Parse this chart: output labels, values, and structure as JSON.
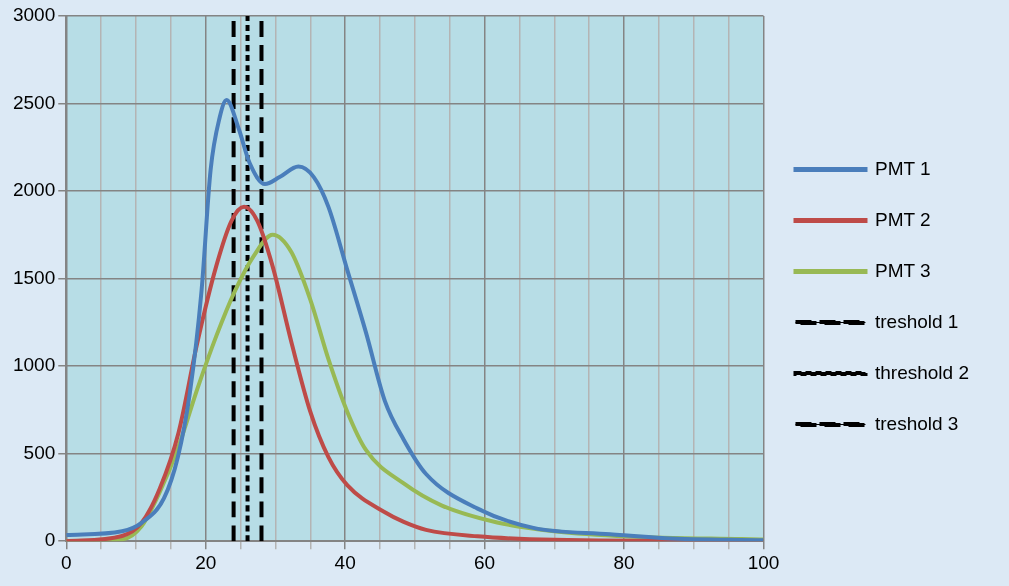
{
  "chart_data": {
    "type": "line",
    "xlim": [
      0,
      100
    ],
    "ylim": [
      0,
      3000
    ],
    "xticks": [
      0,
      {
        "value": 5,
        "label": null
      },
      {
        "value": 10,
        "label": null
      },
      {
        "value": 15,
        "label": null
      },
      20,
      {
        "value": 25,
        "label": null
      },
      {
        "value": 30,
        "label": null
      },
      {
        "value": 35,
        "label": null
      },
      40,
      {
        "value": 45,
        "label": null
      },
      {
        "value": 50,
        "label": null
      },
      {
        "value": 55,
        "label": null
      },
      60,
      {
        "value": 65,
        "label": null
      },
      {
        "value": 70,
        "label": null
      },
      {
        "value": 75,
        "label": null
      },
      80,
      {
        "value": 85,
        "label": null
      },
      {
        "value": 90,
        "label": null
      },
      {
        "value": 95,
        "label": null
      },
      100
    ],
    "yticks": [
      0,
      500,
      1000,
      1500,
      2000,
      2500,
      3000
    ],
    "grid": true,
    "legend": "right",
    "marker": "none",
    "series": [
      {
        "name": "PMT 1",
        "color": "#4a7ebb",
        "line_style": "solid",
        "x": [
          0,
          8,
          10.8,
          14,
          16,
          17.7,
          19.4,
          20.7,
          22,
          23,
          24.7,
          26.3,
          28.5,
          30.6,
          33.3,
          35.5,
          37.6,
          40.3,
          43,
          45.7,
          48.4,
          51.6,
          59,
          67,
          78,
          86,
          100
        ],
        "values": [
          35,
          57,
          105,
          245,
          480,
          840,
          1430,
          2120,
          2420,
          2520,
          2360,
          2160,
          2040,
          2080,
          2140,
          2080,
          1910,
          1550,
          1190,
          800,
          580,
          384,
          186,
          76,
          40,
          17,
          5
        ]
      },
      {
        "name": "PMT 2",
        "color": "#be4b48",
        "line_style": "solid",
        "x": [
          0,
          8,
          10.8,
          13.4,
          16.1,
          18.8,
          21.5,
          23.7,
          25.5,
          27.4,
          29.6,
          32.3,
          35,
          37.6,
          40.3,
          45.7,
          48.4,
          51.6,
          59,
          70,
          100
        ],
        "values": [
          0,
          30,
          105,
          300,
          620,
          1135,
          1570,
          1830,
          1910,
          1830,
          1570,
          1135,
          740,
          480,
          320,
          165,
          110,
          65,
          28,
          8,
          0
        ]
      },
      {
        "name": "PMT 3",
        "color": "#98b954",
        "line_style": "solid",
        "x": [
          0,
          8,
          10.8,
          13.4,
          16.1,
          18.8,
          21.5,
          24.2,
          26.9,
          29.6,
          32.3,
          35,
          37.6,
          40.3,
          43,
          48.4,
          53.8,
          61.8,
          70,
          80.6,
          96.8,
          100
        ],
        "values": [
          0,
          10,
          85,
          280,
          540,
          870,
          1170,
          1430,
          1630,
          1750,
          1650,
          1380,
          1040,
          740,
          520,
          330,
          205,
          107,
          57,
          27,
          12,
          10
        ]
      },
      {
        "name": "treshold 1",
        "color": "#000000",
        "line_style": "dashed",
        "x": [
          24,
          24
        ],
        "values": [
          0,
          3000
        ]
      },
      {
        "name": "threshold 2",
        "color": "#000000",
        "line_style": "dotted",
        "x": [
          26,
          26
        ],
        "values": [
          0,
          3000
        ]
      },
      {
        "name": "treshold 3",
        "color": "#000000",
        "line_style": "dashed",
        "x": [
          28,
          28
        ],
        "values": [
          0,
          3000
        ]
      }
    ]
  }
}
